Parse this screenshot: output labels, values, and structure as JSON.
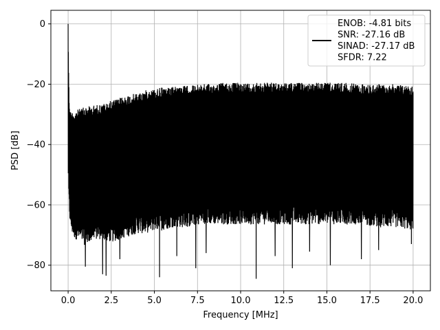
{
  "chart_data": {
    "type": "line",
    "xlabel": "Frequency [MHz]",
    "ylabel": "PSD [dB]",
    "xlim": [
      -1.0,
      21.0
    ],
    "ylim": [
      -88.5,
      4.5
    ],
    "x_ticks": [
      0.0,
      2.5,
      5.0,
      7.5,
      10.0,
      12.5,
      15.0,
      17.5,
      20.0
    ],
    "x_tick_labels": [
      "0.0",
      "2.5",
      "5.0",
      "7.5",
      "10.0",
      "12.5",
      "15.0",
      "17.5",
      "20.0"
    ],
    "y_ticks": [
      0,
      -20,
      -40,
      -60,
      -80
    ],
    "y_tick_labels": [
      "0",
      "−20",
      "−40",
      "−60",
      "−80"
    ],
    "grid": true,
    "legend_position": "top-right",
    "series": [
      {
        "name": "ENOB: -4.81 bits\nSNR: -27.16 dB\nSINAD: -27.17 dB\nSFDR: 7.22",
        "legend_lines": [
          "ENOB: -4.81 bits",
          "SNR: -27.16 dB",
          "SINAD: -27.17 dB",
          "SFDR: 7.22"
        ],
        "color": "#000000",
        "x": [
          0.0,
          0.05,
          0.1,
          0.15,
          0.2,
          0.3,
          0.4,
          0.5,
          0.75,
          1.0,
          1.5,
          2.0,
          2.5,
          3.0,
          3.5,
          4.0,
          4.5,
          5.0,
          5.5,
          6.0,
          6.5,
          7.0,
          7.5,
          8.0,
          9.0,
          10.0,
          11.0,
          12.0,
          13.0,
          14.0,
          15.0,
          16.0,
          17.0,
          18.0,
          19.0,
          20.0
        ],
        "upper_envelope": [
          0,
          -22,
          -28,
          -29,
          -29,
          -29,
          -29,
          -28.5,
          -28,
          -27.5,
          -27,
          -26.5,
          -25.5,
          -24.5,
          -23.5,
          -23,
          -22,
          -21.5,
          -21,
          -21,
          -20.5,
          -20.5,
          -20,
          -20,
          -19.5,
          -19.5,
          -19.5,
          -19.5,
          -19.5,
          -19.5,
          -19.5,
          -19.5,
          -20,
          -20,
          -20,
          -20.5
        ],
        "lower_envelope": [
          -48,
          -60,
          -64,
          -66,
          -68,
          -69,
          -70,
          -70,
          -71,
          -72,
          -70,
          -70,
          -71,
          -70,
          -69,
          -68,
          -68,
          -67,
          -67,
          -66,
          -66,
          -66,
          -65,
          -65,
          -65,
          -65,
          -65,
          -65,
          -65,
          -65,
          -65,
          -65,
          -65,
          -66,
          -66,
          -67
        ],
        "deep_dips": [
          {
            "x": 1.0,
            "y": -80.5
          },
          {
            "x": 2.0,
            "y": -83
          },
          {
            "x": 2.2,
            "y": -83.5
          },
          {
            "x": 5.3,
            "y": -84
          },
          {
            "x": 7.4,
            "y": -81
          },
          {
            "x": 10.9,
            "y": -84.5
          },
          {
            "x": 13.0,
            "y": -81
          },
          {
            "x": 15.2,
            "y": -80
          },
          {
            "x": 17.0,
            "y": -78
          },
          {
            "x": 3.0,
            "y": -78
          },
          {
            "x": 6.3,
            "y": -77
          },
          {
            "x": 8.0,
            "y": -76
          },
          {
            "x": 12.0,
            "y": -77
          },
          {
            "x": 14.0,
            "y": -75.5
          },
          {
            "x": 18.0,
            "y": -75
          },
          {
            "x": 19.9,
            "y": -73
          }
        ]
      }
    ]
  }
}
